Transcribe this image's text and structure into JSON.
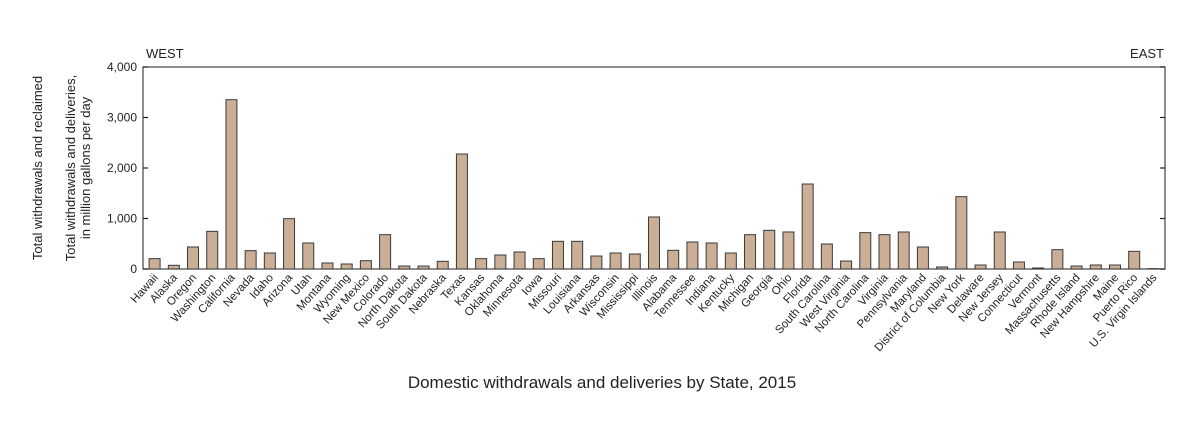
{
  "chart_data": {
    "type": "bar",
    "title": "Domestic withdrawals and deliveries by State, 2015",
    "ylabel_line1": "Total withdrawals and reclaimed",
    "ylabel_line2": "Total withdrawals and deliveries,",
    "ylabel_line3": "in million gallons per day",
    "xlabel": "",
    "left_annotation": "WEST",
    "right_annotation": "EAST",
    "ylim": [
      0,
      4000
    ],
    "yticks": [
      0,
      1000,
      2000,
      3000,
      4000
    ],
    "ytick_labels": [
      "0",
      "1,000",
      "2,000",
      "3,000",
      "4,000"
    ],
    "grid": false,
    "bar_color": "#cbae96",
    "bar_edge_color": "#3a3a3a",
    "categories": [
      "Hawaii",
      "Alaska",
      "Oregon",
      "Washington",
      "California",
      "Nevada",
      "Idaho",
      "Arizona",
      "Utah",
      "Montana",
      "Wyoming",
      "New Mexico",
      "Colorado",
      "North Dakota",
      "South Dakota",
      "Nebraska",
      "Texas",
      "Kansas",
      "Oklahoma",
      "Minnesota",
      "Iowa",
      "Missouri",
      "Louisiana",
      "Arkansas",
      "Wisconsin",
      "Mississippi",
      "Illinois",
      "Alabama",
      "Tennessee",
      "Indiana",
      "Kentucky",
      "Michigan",
      "Georgia",
      "Ohio",
      "Florida",
      "South Carolina",
      "West Virginia",
      "North Carolina",
      "Virginia",
      "Pennsylvania",
      "Maryland",
      "District of Columbia",
      "New York",
      "Delaware",
      "New Jersey",
      "Connecticut",
      "Vermont",
      "Massachusetts",
      "Rhode Island",
      "New Hampshire",
      "Maine",
      "Puerto Rico",
      "U.S. Virgin Islands"
    ],
    "values": [
      205,
      73,
      436,
      746,
      3353,
      363,
      317,
      997,
      515,
      119,
      99,
      165,
      680,
      59,
      59,
      152,
      2277,
      205,
      277,
      337,
      205,
      548,
      548,
      257,
      317,
      297,
      1030,
      370,
      535,
      515,
      317,
      680,
      766,
      733,
      1683,
      495,
      158,
      720,
      680,
      733,
      436,
      40,
      1432,
      79,
      733,
      139,
      20,
      383,
      59,
      79,
      79,
      350,
      7
    ]
  }
}
